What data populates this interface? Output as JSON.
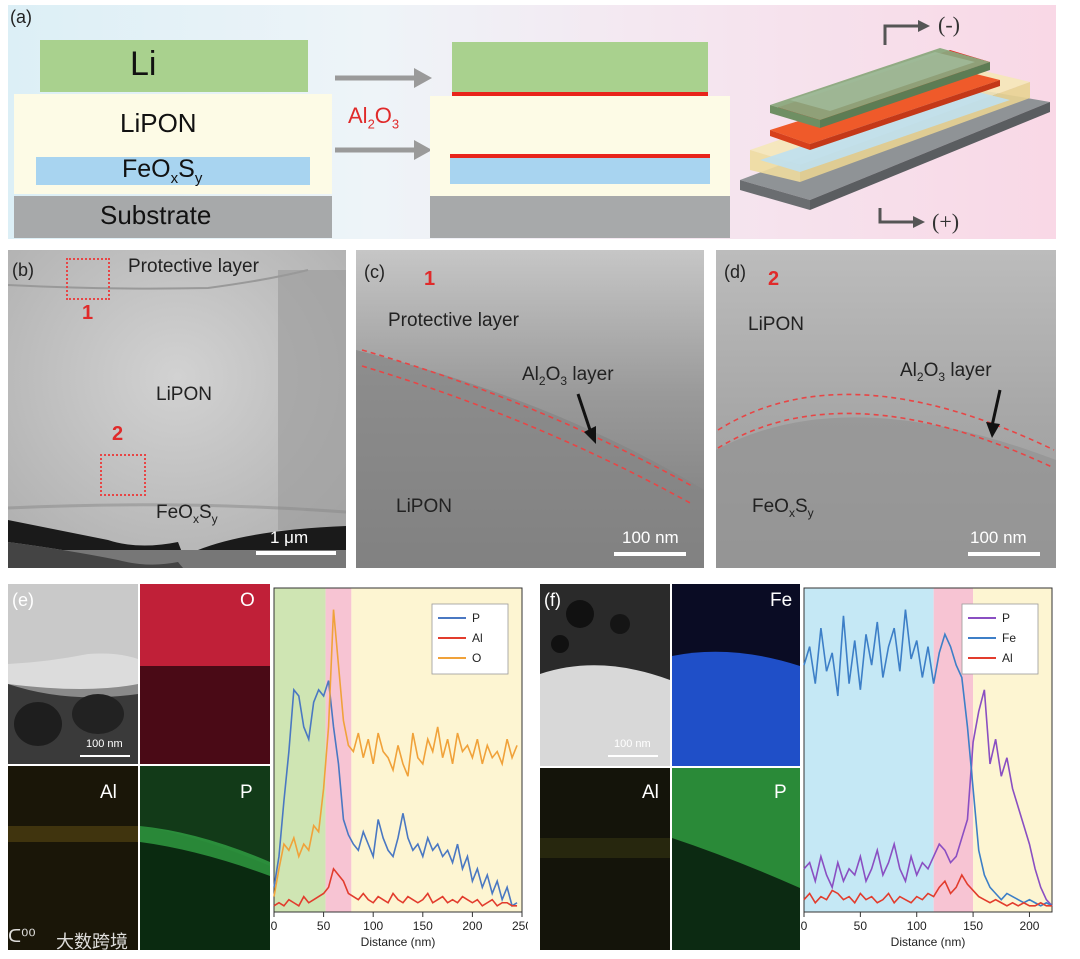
{
  "panel_a": {
    "label": "(a)",
    "layers": {
      "li": "Li",
      "lipon": "LiPON",
      "cathode": "FeO",
      "cathode_sub_x": "x",
      "cathode_s": "S",
      "cathode_sub_y": "y",
      "substrate": "Substrate"
    },
    "arrow_label_main": "Al",
    "arrow_label_sub2": "2",
    "arrow_label_o": "O",
    "arrow_label_sub3": "3",
    "neg_terminal": "(-)",
    "pos_terminal": "(+)",
    "colors": {
      "li": "#a9d18e",
      "lipon": "#fdfbe6",
      "cathode": "#a8d4f0",
      "substrate": "#a7a9aa",
      "al2o3": "#e8241b"
    }
  },
  "panel_b": {
    "label": "(b)",
    "protective_layer": "Protective layer",
    "region1": "1",
    "region2": "2",
    "lipon": "LiPON",
    "cathode": "FeO",
    "cathode_sub_x": "x",
    "cathode_s": "S",
    "cathode_sub_y": "y",
    "scale": "1 μm"
  },
  "panel_c": {
    "label": "(c)",
    "region": "1",
    "protective_layer": "Protective layer",
    "layer_al": "Al",
    "layer_sub2": "2",
    "layer_o": "O",
    "layer_sub3": "3",
    "layer_word": " layer",
    "lipon": "LiPON",
    "scale": "100 nm"
  },
  "panel_d": {
    "label": "(d)",
    "region": "2",
    "lipon": "LiPON",
    "layer_al": "Al",
    "layer_sub2": "2",
    "layer_o": "O",
    "layer_sub3": "3",
    "layer_word": " layer",
    "cathode": "FeO",
    "cathode_sub_x": "x",
    "cathode_s": "S",
    "cathode_sub_y": "y",
    "scale": "100 nm"
  },
  "panel_e": {
    "label": "(e)",
    "scale": "100 nm",
    "map_o": "O",
    "map_al": "Al",
    "map_p": "P"
  },
  "panel_f": {
    "label": "(f)",
    "scale": "100 nm",
    "map_fe": "Fe",
    "map_al": "Al",
    "map_p": "P"
  },
  "watermark": "大数跨境",
  "chart_data": [
    {
      "type": "line",
      "panel": "e",
      "xlabel": "Distance (nm)",
      "ylabel": "",
      "xlim": [
        0,
        250
      ],
      "xticks": [
        0,
        50,
        100,
        150,
        200,
        250
      ],
      "regions": [
        {
          "from": 0,
          "to": 52,
          "color": "#cfe5b3"
        },
        {
          "from": 52,
          "to": 78,
          "color": "#f7c4d3"
        },
        {
          "from": 78,
          "to": 250,
          "color": "#fdf5d2"
        }
      ],
      "legend": "top-right",
      "series": [
        {
          "name": "P",
          "color": "#4a78c2",
          "x": [
            0,
            5,
            10,
            15,
            20,
            25,
            30,
            35,
            40,
            45,
            50,
            55,
            60,
            65,
            70,
            75,
            80,
            85,
            90,
            95,
            100,
            105,
            110,
            115,
            120,
            125,
            130,
            135,
            140,
            145,
            150,
            155,
            160,
            165,
            170,
            175,
            180,
            185,
            190,
            195,
            200,
            205,
            210,
            215,
            220,
            225,
            230,
            235,
            240,
            245
          ],
          "y": [
            8,
            18,
            36,
            52,
            72,
            70,
            60,
            56,
            68,
            72,
            70,
            75,
            60,
            48,
            30,
            25,
            22,
            20,
            26,
            22,
            18,
            30,
            24,
            20,
            18,
            24,
            32,
            24,
            20,
            22,
            18,
            24,
            20,
            22,
            18,
            20,
            16,
            22,
            14,
            18,
            10,
            14,
            8,
            12,
            6,
            10,
            4,
            8,
            2,
            3
          ]
        },
        {
          "name": "Al",
          "color": "#e23c2d",
          "x": [
            0,
            5,
            10,
            15,
            20,
            25,
            30,
            35,
            40,
            45,
            50,
            55,
            60,
            65,
            70,
            75,
            80,
            85,
            90,
            95,
            100,
            105,
            110,
            115,
            120,
            125,
            130,
            135,
            140,
            145,
            150,
            155,
            160,
            165,
            170,
            175,
            180,
            185,
            190,
            195,
            200,
            205,
            210,
            215,
            220,
            225,
            230,
            235,
            240,
            245
          ],
          "y": [
            2,
            3,
            2,
            4,
            3,
            2,
            5,
            3,
            4,
            5,
            6,
            8,
            14,
            12,
            10,
            6,
            5,
            4,
            6,
            4,
            3,
            5,
            4,
            3,
            6,
            4,
            3,
            5,
            4,
            3,
            4,
            6,
            3,
            4,
            5,
            3,
            4,
            3,
            5,
            4,
            3,
            4,
            2,
            3,
            4,
            2,
            3,
            3,
            2,
            2
          ]
        },
        {
          "name": "O",
          "color": "#f0a23a",
          "x": [
            0,
            5,
            10,
            15,
            20,
            25,
            30,
            35,
            40,
            45,
            50,
            55,
            60,
            65,
            70,
            75,
            80,
            85,
            90,
            95,
            100,
            105,
            110,
            115,
            120,
            125,
            130,
            135,
            140,
            145,
            150,
            155,
            160,
            165,
            170,
            175,
            180,
            185,
            190,
            195,
            200,
            205,
            210,
            215,
            220,
            225,
            230,
            235,
            240,
            245
          ],
          "y": [
            5,
            14,
            22,
            20,
            24,
            18,
            22,
            20,
            28,
            26,
            40,
            60,
            98,
            80,
            62,
            54,
            52,
            58,
            50,
            56,
            48,
            58,
            52,
            50,
            46,
            54,
            48,
            44,
            58,
            50,
            48,
            56,
            52,
            60,
            50,
            56,
            48,
            58,
            52,
            54,
            50,
            56,
            48,
            54,
            50,
            52,
            48,
            56,
            50,
            54
          ]
        }
      ]
    },
    {
      "type": "line",
      "panel": "f",
      "xlabel": "Distance (nm)",
      "ylabel": "",
      "xlim": [
        0,
        220
      ],
      "xticks": [
        0,
        50,
        100,
        150,
        200
      ],
      "regions": [
        {
          "from": 0,
          "to": 115,
          "color": "#c5e8f5"
        },
        {
          "from": 115,
          "to": 150,
          "color": "#f7c4d3"
        },
        {
          "from": 150,
          "to": 220,
          "color": "#fdf5d2"
        }
      ],
      "legend": "top-right",
      "series": [
        {
          "name": "P",
          "color": "#8a4fc2",
          "x": [
            0,
            5,
            10,
            15,
            20,
            25,
            30,
            35,
            40,
            45,
            50,
            55,
            60,
            65,
            70,
            75,
            80,
            85,
            90,
            95,
            100,
            105,
            110,
            115,
            120,
            125,
            130,
            135,
            140,
            145,
            150,
            155,
            160,
            165,
            170,
            175,
            180,
            185,
            190,
            195,
            200,
            205,
            210,
            215,
            220
          ],
          "y": [
            14,
            16,
            10,
            18,
            12,
            8,
            16,
            10,
            14,
            12,
            18,
            10,
            14,
            20,
            12,
            16,
            22,
            14,
            10,
            18,
            12,
            16,
            14,
            18,
            22,
            20,
            16,
            18,
            24,
            30,
            55,
            65,
            72,
            48,
            56,
            44,
            50,
            40,
            34,
            28,
            22,
            14,
            8,
            4,
            2
          ]
        },
        {
          "name": "Fe",
          "color": "#3d7fc7",
          "x": [
            0,
            5,
            10,
            15,
            20,
            25,
            30,
            35,
            40,
            45,
            50,
            55,
            60,
            65,
            70,
            75,
            80,
            85,
            90,
            95,
            100,
            105,
            110,
            115,
            120,
            125,
            130,
            135,
            140,
            145,
            150,
            155,
            160,
            165,
            170,
            175,
            180,
            185,
            190,
            195,
            200,
            205,
            210,
            215,
            220
          ],
          "y": [
            80,
            86,
            74,
            92,
            78,
            84,
            70,
            96,
            74,
            88,
            72,
            90,
            80,
            94,
            76,
            86,
            92,
            78,
            98,
            82,
            88,
            76,
            86,
            74,
            84,
            90,
            86,
            80,
            76,
            60,
            40,
            20,
            12,
            8,
            6,
            4,
            6,
            5,
            4,
            3,
            4,
            3,
            2,
            3,
            2
          ]
        },
        {
          "name": "Al",
          "color": "#e23c2d",
          "x": [
            0,
            5,
            10,
            15,
            20,
            25,
            30,
            35,
            40,
            45,
            50,
            55,
            60,
            65,
            70,
            75,
            80,
            85,
            90,
            95,
            100,
            105,
            110,
            115,
            120,
            125,
            130,
            135,
            140,
            145,
            150,
            155,
            160,
            165,
            170,
            175,
            180,
            185,
            190,
            195,
            200,
            205,
            210,
            215,
            220
          ],
          "y": [
            4,
            6,
            3,
            5,
            4,
            7,
            6,
            4,
            5,
            3,
            6,
            4,
            5,
            3,
            4,
            6,
            3,
            5,
            4,
            3,
            5,
            4,
            6,
            5,
            8,
            10,
            6,
            8,
            12,
            9,
            7,
            5,
            4,
            3,
            4,
            3,
            2,
            3,
            2,
            3,
            2,
            2,
            3,
            2,
            2
          ]
        }
      ]
    }
  ]
}
